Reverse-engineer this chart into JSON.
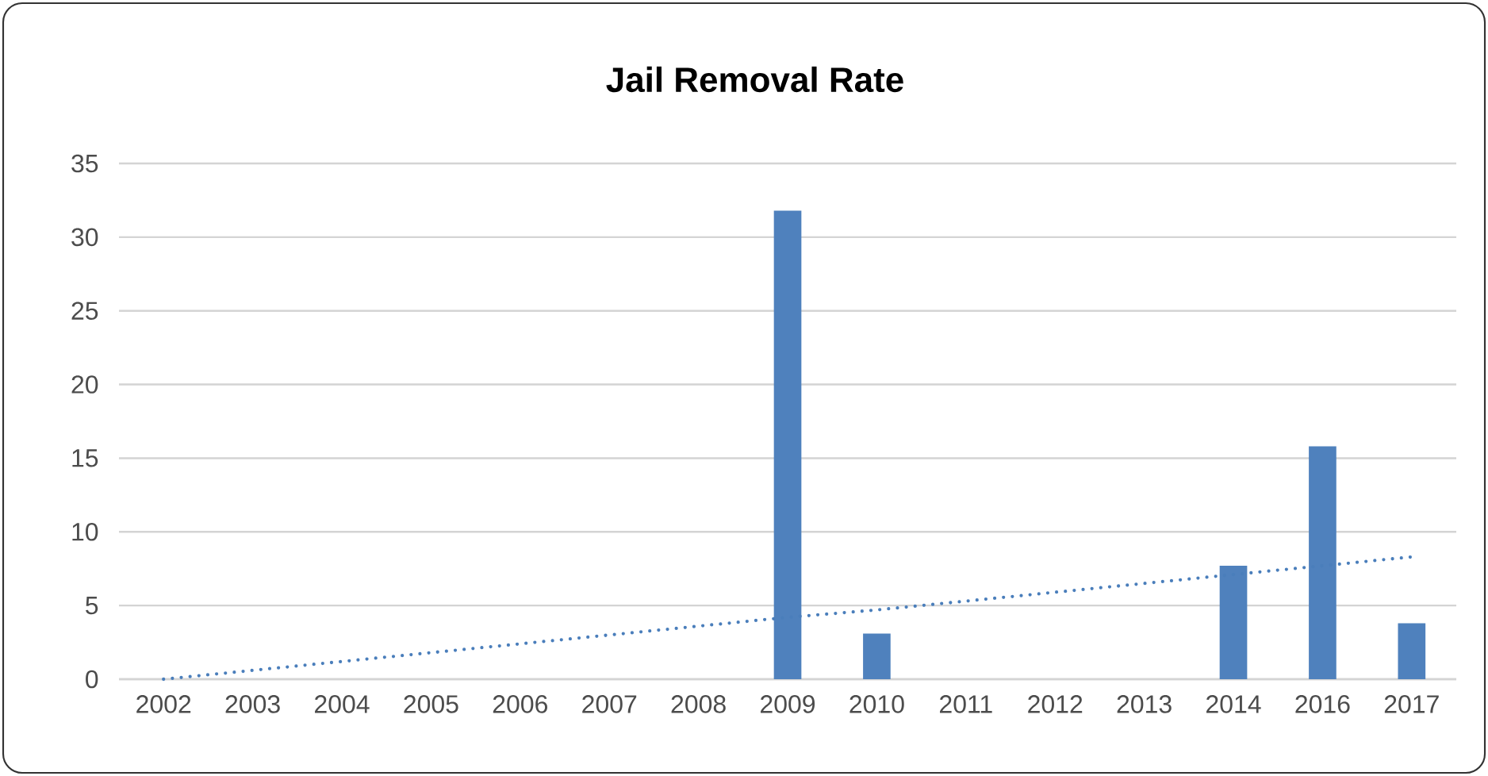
{
  "chart_data": {
    "type": "bar",
    "title": "Jail Removal Rate",
    "categories": [
      "2002",
      "2003",
      "2004",
      "2005",
      "2006",
      "2007",
      "2008",
      "2009",
      "2010",
      "2011",
      "2012",
      "2013",
      "2014",
      "2016",
      "2017"
    ],
    "series": [
      {
        "color": "#4f81bd",
        "values": [
          0,
          0,
          0,
          0,
          0,
          0,
          0,
          31.8,
          3.1,
          0,
          0,
          0,
          7.7,
          15.8,
          3.8
        ]
      },
      {
        "type": "line",
        "color": "#4a7ebb",
        "line_style": "dotted",
        "values": [
          0,
          0.6,
          1.2,
          1.8,
          2.4,
          3.0,
          3.6,
          4.2,
          4.7,
          5.3,
          5.9,
          6.5,
          7.1,
          7.7,
          8.3
        ]
      }
    ],
    "ylim": [
      0,
      35
    ],
    "yticks": [
      0,
      5,
      10,
      15,
      20,
      25,
      30,
      35
    ],
    "grid": "y"
  }
}
